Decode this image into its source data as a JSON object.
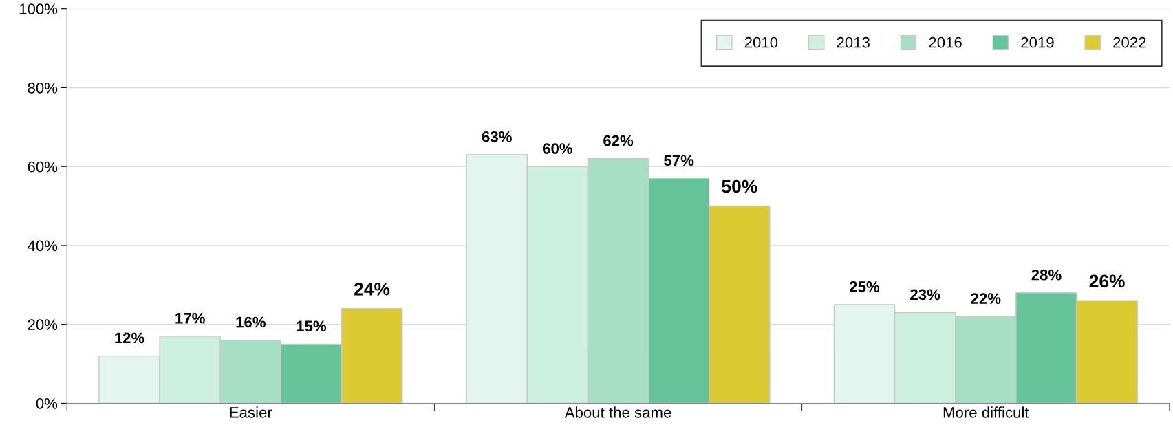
{
  "chart_data": {
    "type": "bar",
    "categories": [
      "Easier",
      "About the same",
      "More difficult"
    ],
    "series": [
      {
        "name": "2010",
        "color": "#e2f5ee",
        "values": [
          12,
          63,
          25
        ],
        "value_labels": [
          "12%",
          "63%",
          "25%"
        ]
      },
      {
        "name": "2013",
        "color": "#ccefe0",
        "values": [
          17,
          60,
          23
        ],
        "value_labels": [
          "17%",
          "60%",
          "23%"
        ]
      },
      {
        "name": "2016",
        "color": "#a6dfc4",
        "values": [
          16,
          62,
          22
        ],
        "value_labels": [
          "16%",
          "62%",
          "22%"
        ]
      },
      {
        "name": "2019",
        "color": "#66c49a",
        "values": [
          15,
          57,
          28
        ],
        "value_labels": [
          "15%",
          "57%",
          "28%"
        ]
      },
      {
        "name": "2022",
        "color": "#dcca32",
        "values": [
          24,
          50,
          26
        ],
        "value_labels": [
          "24%",
          "50%",
          "26%"
        ]
      }
    ],
    "ylim": [
      0,
      100
    ],
    "yticks": [
      {
        "value": 0,
        "label": "0%"
      },
      {
        "value": 20,
        "label": "20%"
      },
      {
        "value": 40,
        "label": "40%"
      },
      {
        "value": 60,
        "label": "60%"
      },
      {
        "value": 80,
        "label": "80%"
      },
      {
        "value": 100,
        "label": "100%"
      }
    ],
    "grid": "y",
    "legend": "top right"
  }
}
